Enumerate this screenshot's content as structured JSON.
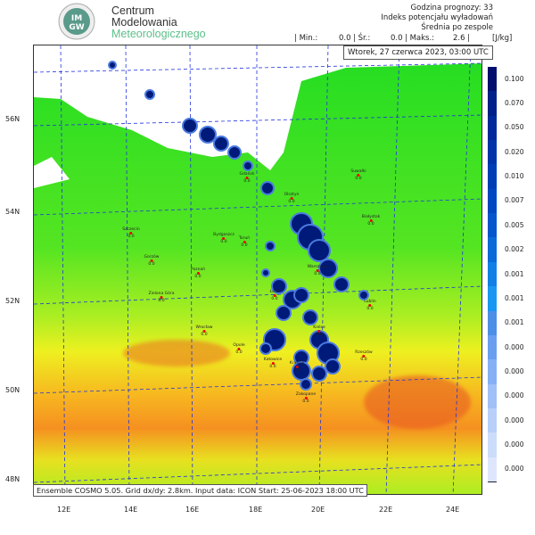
{
  "logo": {
    "emblem_text": "IMGW",
    "line1": "Centrum",
    "line2": "Modelowania",
    "line3": "Meteorologicznego"
  },
  "header": {
    "forecast_hour": "Godzina prognozy: 33",
    "index_name": "Indeks potencjału wyładowań",
    "mean_label": "Średnia po zespole"
  },
  "stats": {
    "min_label": "| Min.:",
    "min_value": "0.0",
    "mean_label": "| Śr.:",
    "mean_value": "0.0",
    "max_label": "| Maks.:",
    "max_value": "2.6",
    "end_bar": "|",
    "unit": "[J/kg]"
  },
  "valid_time": "Wtorek, 27 czerwca 2023, 03:00 UTC",
  "footer": "Ensemble COSMO 5.05. Grid dx/dy: 2.8km. Input data: ICON Start: 25-06-2023 18:00 UTC",
  "lat_labels": [
    "56N",
    "54N",
    "52N",
    "50N",
    "48N"
  ],
  "lon_labels": [
    "12E",
    "14E",
    "16E",
    "18E",
    "20E",
    "22E",
    "24E"
  ],
  "colorbar": {
    "labels": [
      "0.100",
      "0.070",
      "0.050",
      "0.020",
      "0.010",
      "0.007",
      "0.005",
      "0.002",
      "0.001",
      "0.001",
      "0.001",
      "0.000",
      "0.000",
      "0.000",
      "0.000",
      "0.000",
      "0.000"
    ],
    "colors": [
      "#000f6e",
      "#00208a",
      "#002a9a",
      "#0034a8",
      "#003eb5",
      "#0048c2",
      "#0556cc",
      "#0a6ad8",
      "#1080e6",
      "#1996f2",
      "#4d8fe6",
      "#6a9ff0",
      "#86b0f5",
      "#a0c0f8",
      "#b8cff9",
      "#ccdcfb",
      "#dde6fc"
    ]
  },
  "cities": [
    {
      "name": "Gdańsk",
      "value": "0.0"
    },
    {
      "name": "Suwałki",
      "value": "0.0"
    },
    {
      "name": "Olsztyn",
      "value": "0.0"
    },
    {
      "name": "Białystok",
      "value": "0.0"
    },
    {
      "name": "Szczecin",
      "value": "0.0"
    },
    {
      "name": "Bydgoszcz",
      "value": "0.0"
    },
    {
      "name": "Toruń",
      "value": "0.0"
    },
    {
      "name": "Gorzów",
      "value": "0.0"
    },
    {
      "name": "Poznań",
      "value": "0.0"
    },
    {
      "name": "Warszawa",
      "value": "0.0"
    },
    {
      "name": "Zielona Góra",
      "value": "0.0"
    },
    {
      "name": "Łódź",
      "value": "0.0"
    },
    {
      "name": "Lublin",
      "value": "0.0"
    },
    {
      "name": "Wrocław",
      "value": "0.0"
    },
    {
      "name": "Kielce",
      "value": "0.0"
    },
    {
      "name": "Opole",
      "value": "0.0"
    },
    {
      "name": "Katowice",
      "value": "0.0"
    },
    {
      "name": "Kraków",
      "value": "0.0"
    },
    {
      "name": "Rzeszów",
      "value": "0.0"
    },
    {
      "name": "Zakopane",
      "value": "0.0"
    }
  ]
}
